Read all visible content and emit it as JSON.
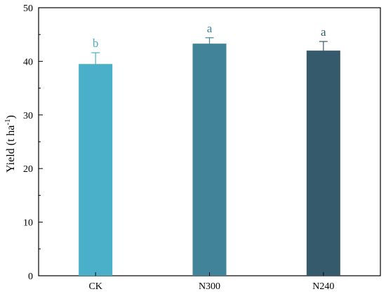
{
  "chart_data": {
    "type": "bar",
    "categories": [
      "CK",
      "N300",
      "N240"
    ],
    "values": [
      39.5,
      43.3,
      42.0
    ],
    "errors": [
      2.1,
      1.1,
      1.7
    ],
    "significance": [
      "b",
      "a",
      "a"
    ],
    "colors": [
      "#4aafc8",
      "#41849a",
      "#355a6c"
    ],
    "ylabel": "Yield (t ha",
    "ylabel_sup": "-1",
    "ylabel_close": ")",
    "ylim": [
      0,
      50
    ],
    "yticks": [
      0,
      10,
      20,
      30,
      40,
      50
    ],
    "yticks_text": [
      "0",
      "10",
      "20",
      "30",
      "40",
      "50"
    ],
    "grid": false,
    "legend": "none"
  }
}
